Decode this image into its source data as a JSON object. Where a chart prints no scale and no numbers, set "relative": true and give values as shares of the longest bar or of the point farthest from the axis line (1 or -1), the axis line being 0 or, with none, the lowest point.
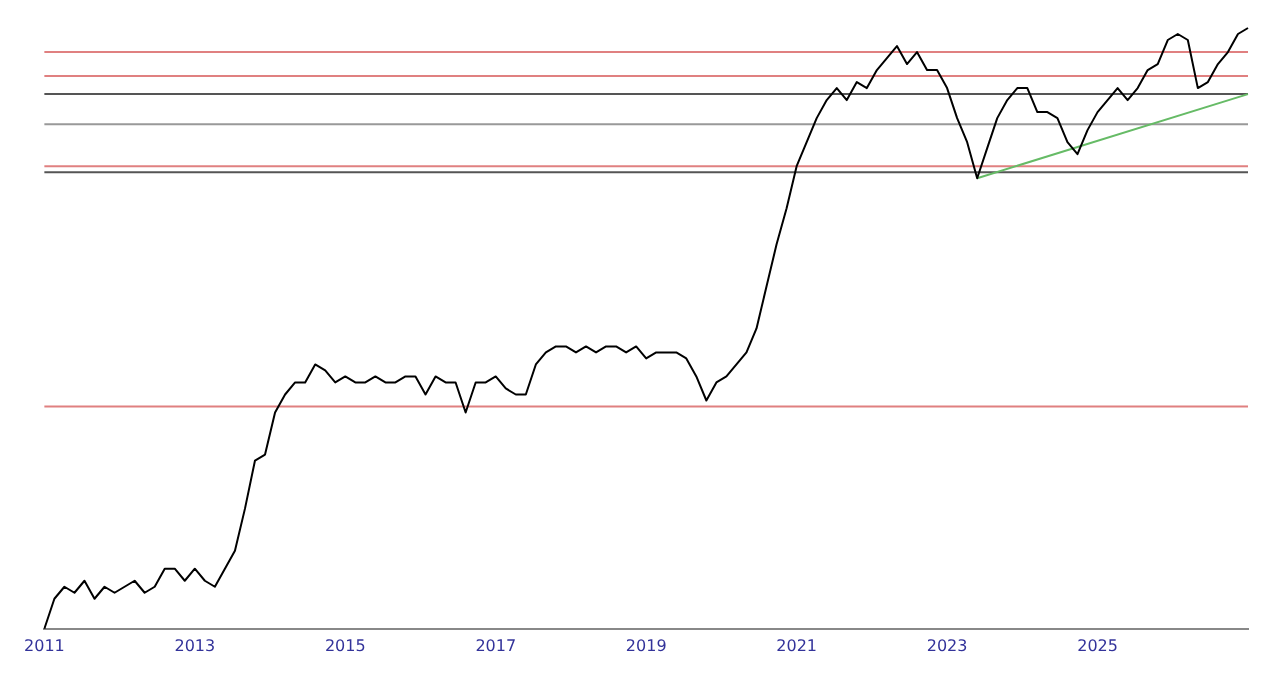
{
  "chart_data": {
    "type": "line",
    "relative": true,
    "grid": false,
    "legend": false,
    "marker": "none",
    "categories": [
      "2011",
      null,
      null,
      null,
      null,
      null,
      null,
      null,
      null,
      null,
      null,
      null,
      null,
      null,
      null,
      "2013",
      null,
      null,
      null,
      null,
      null,
      null,
      null,
      null,
      null,
      null,
      null,
      null,
      null,
      null,
      "2015",
      null,
      null,
      null,
      null,
      null,
      null,
      null,
      null,
      null,
      null,
      null,
      null,
      null,
      null,
      "2017",
      null,
      null,
      null,
      null,
      null,
      null,
      null,
      null,
      null,
      null,
      null,
      null,
      null,
      null,
      "2019",
      null,
      null,
      null,
      null,
      null,
      null,
      null,
      null,
      null,
      null,
      null,
      null,
      null,
      null,
      "2021",
      null,
      null,
      null,
      null,
      null,
      null,
      null,
      null,
      null,
      null,
      null,
      null,
      null,
      null,
      "2023",
      null,
      null,
      null,
      null,
      null,
      null,
      null,
      null,
      null,
      null,
      null,
      null,
      null,
      null,
      "2025",
      null,
      null,
      null,
      null,
      null,
      null,
      null,
      null,
      null,
      null,
      null,
      null,
      null,
      null,
      null
    ],
    "series": [
      {
        "color": "#000000",
        "line_style": "solid",
        "values": [
          0,
          0.05,
          0.07,
          0.06,
          0.08,
          0.05,
          0.07,
          0.06,
          0.07,
          0.08,
          0.06,
          0.07,
          0.1,
          0.1,
          0.08,
          0.1,
          0.08,
          0.07,
          0.1,
          0.13,
          0.2,
          0.28,
          0.29,
          0.36,
          0.39,
          0.41,
          0.41,
          0.44,
          0.43,
          0.41,
          0.42,
          0.41,
          0.41,
          0.42,
          0.41,
          0.41,
          0.42,
          0.42,
          0.39,
          0.42,
          0.41,
          0.41,
          0.36,
          0.41,
          0.41,
          0.42,
          0.4,
          0.39,
          0.39,
          0.44,
          0.46,
          0.47,
          0.47,
          0.46,
          0.47,
          0.46,
          0.47,
          0.47,
          0.46,
          0.47,
          0.45,
          0.46,
          0.46,
          0.46,
          0.45,
          0.42,
          0.38,
          0.41,
          0.42,
          0.44,
          0.46,
          0.5,
          0.57,
          0.64,
          0.7,
          0.77,
          0.81,
          0.85,
          0.88,
          0.9,
          0.88,
          0.91,
          0.9,
          0.93,
          0.95,
          0.97,
          0.94,
          0.96,
          0.93,
          0.93,
          0.9,
          0.85,
          0.81,
          0.75,
          0.8,
          0.85,
          0.88,
          0.9,
          0.9,
          0.86,
          0.86,
          0.85,
          0.81,
          0.79,
          0.83,
          0.86,
          0.88,
          0.9,
          0.88,
          0.9,
          0.93,
          0.94,
          0.98,
          0.99,
          0.98,
          0.9,
          0.91,
          0.94,
          0.96,
          0.99,
          1
        ]
      },
      {
        "type": "line",
        "color": "#66bb66",
        "line_style": "solid",
        "values": [
          null,
          null,
          null,
          null,
          null,
          null,
          null,
          null,
          null,
          null,
          null,
          null,
          null,
          null,
          null,
          null,
          null,
          null,
          null,
          null,
          null,
          null,
          null,
          null,
          null,
          null,
          null,
          null,
          null,
          null,
          null,
          null,
          null,
          null,
          null,
          null,
          null,
          null,
          null,
          null,
          null,
          null,
          null,
          null,
          null,
          null,
          null,
          null,
          null,
          null,
          null,
          null,
          null,
          null,
          null,
          null,
          null,
          null,
          null,
          null,
          null,
          null,
          null,
          null,
          null,
          null,
          null,
          null,
          null,
          null,
          null,
          null,
          null,
          null,
          null,
          null,
          null,
          null,
          null,
          null,
          null,
          null,
          null,
          null,
          null,
          null,
          null,
          null,
          null,
          null,
          null,
          null,
          null,
          0.75,
          null,
          null,
          null,
          null,
          null,
          null,
          null,
          null,
          null,
          null,
          null,
          null,
          null,
          null,
          null,
          null,
          null,
          null,
          null,
          null,
          null,
          null,
          null,
          null,
          null,
          null,
          0.89
        ]
      }
    ],
    "ref_lines": [
      {
        "axis": "y",
        "value": 0.96,
        "color": "#e08080"
      },
      {
        "axis": "y",
        "value": 0.92,
        "color": "#e08080"
      },
      {
        "axis": "y",
        "value": 0.89,
        "color": "#555555"
      },
      {
        "axis": "y",
        "value": 0.84,
        "color": "#999999"
      },
      {
        "axis": "y",
        "value": 0.77,
        "color": "#e08080"
      },
      {
        "axis": "y",
        "value": 0.76,
        "color": "#555555"
      },
      {
        "axis": "y",
        "value": 0.37,
        "color": "#e08080"
      }
    ]
  }
}
